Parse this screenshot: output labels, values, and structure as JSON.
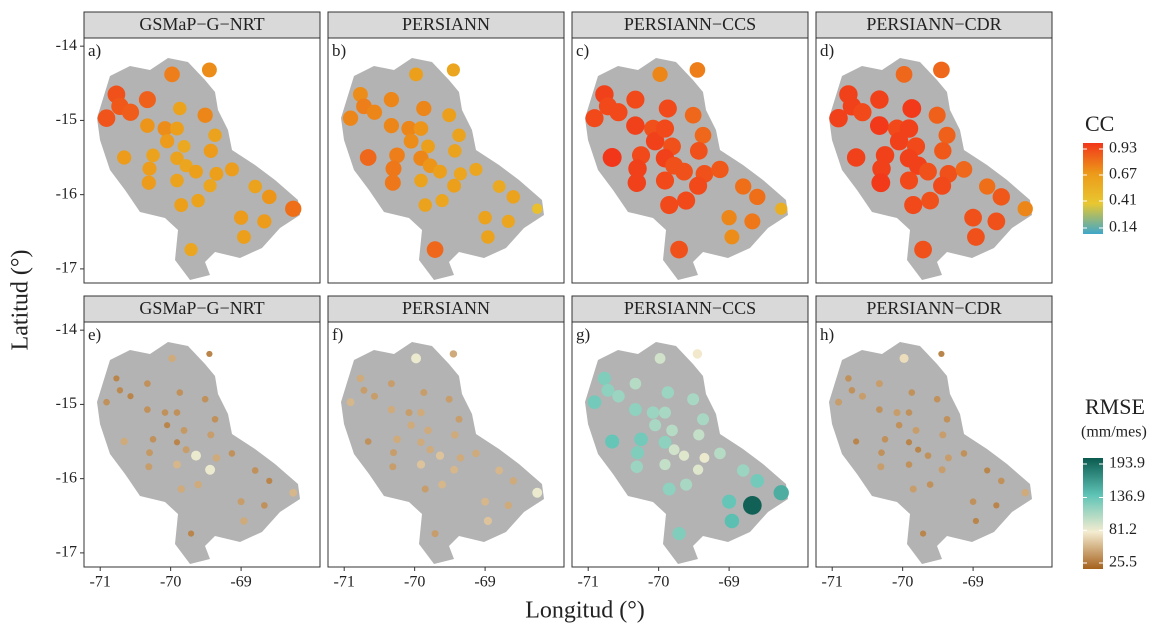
{
  "chart_data": {
    "type": "scatter",
    "x_label": "Longitud (°)",
    "y_label": "Latitud (°)",
    "xlim": [
      -71.23,
      -67.88
    ],
    "ylim": [
      -17.19,
      -13.89
    ],
    "xticks": [
      -71,
      -70,
      -69
    ],
    "yticks": [
      -14,
      -15,
      -16,
      -17
    ],
    "x": [
      -70.91,
      -70.77,
      -70.72,
      -70.57,
      -70.33,
      -69.98,
      -70.66,
      -70.33,
      -70.25,
      -70.3,
      -70.31,
      -70.08,
      -70.05,
      -69.87,
      -69.91,
      -69.81,
      -69.91,
      -69.78,
      -69.91,
      -69.64,
      -69.45,
      -69.51,
      -69.37,
      -69.43,
      -69.35,
      -69.44,
      -69.61,
      -69.85,
      -69.71,
      -69.13,
      -68.8,
      -69.0,
      -68.96,
      -68.67,
      -68.6,
      -68.26
    ],
    "y": [
      -14.97,
      -14.65,
      -14.81,
      -14.89,
      -14.72,
      -14.38,
      -15.5,
      -15.07,
      -15.47,
      -15.65,
      -15.84,
      -15.11,
      -15.28,
      -14.84,
      -15.11,
      -15.35,
      -15.51,
      -15.61,
      -15.81,
      -15.69,
      -14.32,
      -14.93,
      -15.2,
      -15.41,
      -15.72,
      -15.88,
      -16.08,
      -16.14,
      -16.74,
      -15.66,
      -15.89,
      -16.31,
      -16.57,
      -16.36,
      -16.03,
      -16.19
    ],
    "legends": [
      {
        "title": "CC",
        "lim": [
          0.14,
          0.93
        ],
        "ticks": [
          0.93,
          0.67,
          0.41,
          0.14
        ],
        "colors": [
          "#3fa7c9",
          "#e8c731",
          "#ec9a19",
          "#f2361a"
        ]
      },
      {
        "title": "RMSE",
        "subtitle": "(mm/mes)",
        "lim": [
          25.5,
          193.9
        ],
        "ticks": [
          193.9,
          136.9,
          81.2,
          25.5
        ],
        "colors": [
          "#a5611c",
          "#f4ecd0",
          "#5ec4b6",
          "#0b5a4f"
        ]
      }
    ],
    "panels": [
      {
        "title": "GSMaP−G−NRT",
        "label": "a)",
        "legend": 0,
        "values": [
          0.85,
          0.86,
          0.84,
          0.83,
          0.82,
          0.74,
          0.66,
          0.68,
          0.62,
          0.65,
          0.66,
          0.7,
          0.66,
          0.62,
          0.64,
          0.58,
          0.62,
          0.6,
          0.62,
          0.64,
          0.7,
          0.72,
          0.62,
          0.66,
          0.64,
          0.6,
          0.62,
          0.64,
          0.6,
          0.65,
          0.62,
          0.66,
          0.64,
          0.66,
          0.68,
          0.78
        ]
      },
      {
        "title": "PERSIANN",
        "label": "b)",
        "legend": 0,
        "values": [
          0.72,
          0.7,
          0.74,
          0.72,
          0.72,
          0.64,
          0.8,
          0.72,
          0.74,
          0.76,
          0.76,
          0.72,
          0.7,
          0.72,
          0.68,
          0.64,
          0.72,
          0.68,
          0.62,
          0.64,
          0.6,
          0.64,
          0.62,
          0.62,
          0.6,
          0.64,
          0.6,
          0.62,
          0.8,
          0.6,
          0.58,
          0.62,
          0.62,
          0.6,
          0.62,
          0.45
        ]
      },
      {
        "title": "PERSIANN−CCS",
        "label": "c)",
        "legend": 0,
        "values": [
          0.88,
          0.9,
          0.88,
          0.88,
          0.88,
          0.72,
          0.93,
          0.9,
          0.88,
          0.9,
          0.9,
          0.86,
          0.9,
          0.88,
          0.88,
          0.86,
          0.9,
          0.86,
          0.88,
          0.86,
          0.74,
          0.8,
          0.8,
          0.86,
          0.86,
          0.88,
          0.88,
          0.88,
          0.86,
          0.84,
          0.78,
          0.72,
          0.7,
          0.76,
          0.78,
          0.55
        ]
      },
      {
        "title": "PERSIANN−CDR",
        "label": "d)",
        "legend": 0,
        "values": [
          0.9,
          0.9,
          0.9,
          0.88,
          0.9,
          0.8,
          0.9,
          0.92,
          0.9,
          0.9,
          0.92,
          0.88,
          0.9,
          0.92,
          0.9,
          0.88,
          0.9,
          0.9,
          0.88,
          0.86,
          0.8,
          0.82,
          0.82,
          0.84,
          0.86,
          0.88,
          0.86,
          0.88,
          0.86,
          0.8,
          0.78,
          0.86,
          0.86,
          0.86,
          0.84,
          0.72
        ]
      },
      {
        "title": "GSMaP−G−NRT",
        "label": "e)",
        "legend": 1,
        "values": [
          45,
          40,
          42,
          40,
          45,
          55,
          55,
          45,
          45,
          48,
          50,
          45,
          40,
          45,
          45,
          48,
          40,
          50,
          60,
          85,
          40,
          45,
          45,
          50,
          55,
          85,
          55,
          55,
          40,
          45,
          45,
          50,
          55,
          45,
          40,
          60
        ]
      },
      {
        "title": "PERSIANN",
        "label": "f)",
        "legend": 1,
        "values": [
          60,
          55,
          50,
          50,
          50,
          85,
          45,
          55,
          55,
          50,
          50,
          50,
          55,
          50,
          55,
          55,
          55,
          55,
          65,
          65,
          55,
          50,
          50,
          55,
          55,
          60,
          60,
          50,
          50,
          55,
          60,
          60,
          65,
          55,
          55,
          85
        ]
      },
      {
        "title": "PERSIANN−CCS",
        "label": "g)",
        "legend": 1,
        "values": [
          130,
          125,
          120,
          115,
          105,
          95,
          135,
          120,
          130,
          125,
          115,
          115,
          110,
          115,
          110,
          105,
          120,
          95,
          100,
          90,
          80,
          110,
          110,
          100,
          85,
          90,
          110,
          120,
          125,
          105,
          115,
          135,
          140,
          190,
          130,
          150
        ]
      },
      {
        "title": "PERSIANN−CDR",
        "label": "h)",
        "legend": 1,
        "values": [
          50,
          45,
          45,
          50,
          50,
          75,
          40,
          45,
          45,
          45,
          50,
          50,
          45,
          45,
          45,
          50,
          40,
          40,
          45,
          45,
          40,
          45,
          45,
          50,
          50,
          50,
          45,
          50,
          40,
          45,
          40,
          45,
          40,
          40,
          45,
          55
        ]
      }
    ]
  }
}
